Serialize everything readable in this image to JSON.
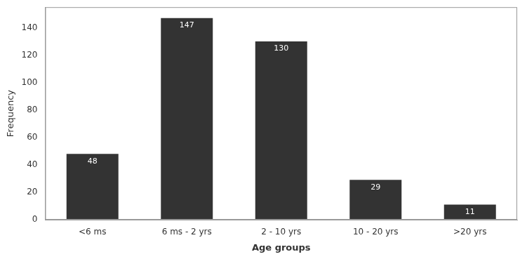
{
  "chart_data": {
    "type": "bar",
    "xlabel": "Age groups",
    "ylabel": "Frequency",
    "categories": [
      "<6 ms",
      "6 ms - 2 yrs",
      "2 - 10 yrs",
      "10 - 20 yrs",
      ">20 yrs"
    ],
    "values": [
      48,
      147,
      130,
      29,
      11
    ],
    "color": "#333333",
    "ylim": [
      0,
      155
    ],
    "yticks": [
      0,
      20,
      40,
      60,
      80,
      100,
      120,
      140
    ],
    "grid": false,
    "data_labels": true
  }
}
